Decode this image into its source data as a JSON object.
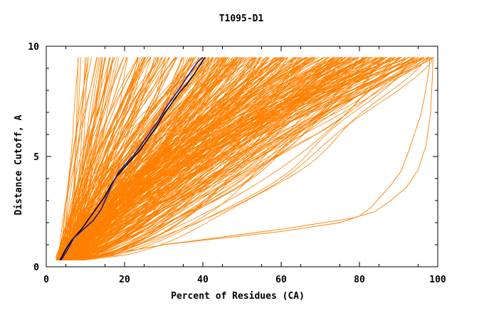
{
  "chart_data": {
    "type": "line",
    "title": "T1095-D1",
    "xlabel": "Percent of Residues (CA)",
    "ylabel": "Distance Cutoff, A",
    "xlim": [
      0,
      100
    ],
    "ylim": [
      0,
      10
    ],
    "xticks": [
      0,
      20,
      40,
      60,
      80,
      100
    ],
    "yticks": [
      0,
      5,
      10
    ],
    "grid": false,
    "legend": "none",
    "colors": {
      "bundle": "#ff8000",
      "highlight_dark": "#000000",
      "highlight_blue": "#1a1a8c"
    },
    "series": [
      {
        "role": "highlight-black",
        "color": "#000000",
        "x": [
          3.5,
          5,
          6.5,
          9,
          11,
          13,
          15,
          16.5,
          18,
          20,
          22,
          24,
          26,
          28,
          30,
          32,
          34,
          36,
          38,
          39.5,
          40.5
        ],
        "y": [
          0.3,
          0.8,
          1.2,
          1.7,
          2.2,
          2.7,
          3.2,
          3.7,
          4.1,
          4.5,
          4.9,
          5.3,
          5.8,
          6.3,
          6.9,
          7.4,
          7.9,
          8.3,
          8.8,
          9.2,
          9.5
        ]
      },
      {
        "role": "highlight-blue",
        "color": "#1a1a8c",
        "x": [
          3.8,
          5.5,
          7,
          9.5,
          12,
          14,
          15.5,
          17,
          18.5,
          20.5,
          22.5,
          24.5,
          26.5,
          28.5,
          30.5,
          32.5,
          34.5,
          36,
          37.5,
          38.8,
          40
        ],
        "y": [
          0.3,
          0.8,
          1.3,
          1.7,
          2.1,
          2.6,
          3.2,
          3.8,
          4.3,
          4.7,
          5.1,
          5.6,
          6.1,
          6.6,
          7.2,
          7.7,
          8.2,
          8.6,
          9.0,
          9.3,
          9.5
        ]
      },
      {
        "role": "bundle-right-1",
        "color": "#ff8000",
        "x": [
          8,
          30,
          60,
          75,
          80,
          83,
          85.5,
          88,
          90.5,
          92.5,
          94,
          95.5,
          96.5,
          97.3,
          97.8,
          98
        ],
        "y": [
          0.3,
          1.0,
          1.6,
          2.0,
          2.3,
          2.7,
          3.2,
          3.7,
          4.3,
          5.2,
          6.0,
          6.8,
          7.6,
          8.4,
          9.0,
          9.5
        ]
      },
      {
        "role": "bundle-right-2",
        "color": "#ff8000",
        "x": [
          8,
          30,
          60,
          78,
          84,
          88,
          92,
          95,
          97,
          98.2,
          98.6,
          98.8
        ],
        "y": [
          0.3,
          1.0,
          1.7,
          2.2,
          2.5,
          3.0,
          3.6,
          4.4,
          5.5,
          7.0,
          8.5,
          9.5
        ]
      }
    ],
    "bundle": {
      "count": 360,
      "color": "#ff8000",
      "y_start": 0.3,
      "y_end": 9.5,
      "x_start_range": [
        2.5,
        9
      ],
      "x_end_range": [
        8,
        99
      ]
    }
  }
}
